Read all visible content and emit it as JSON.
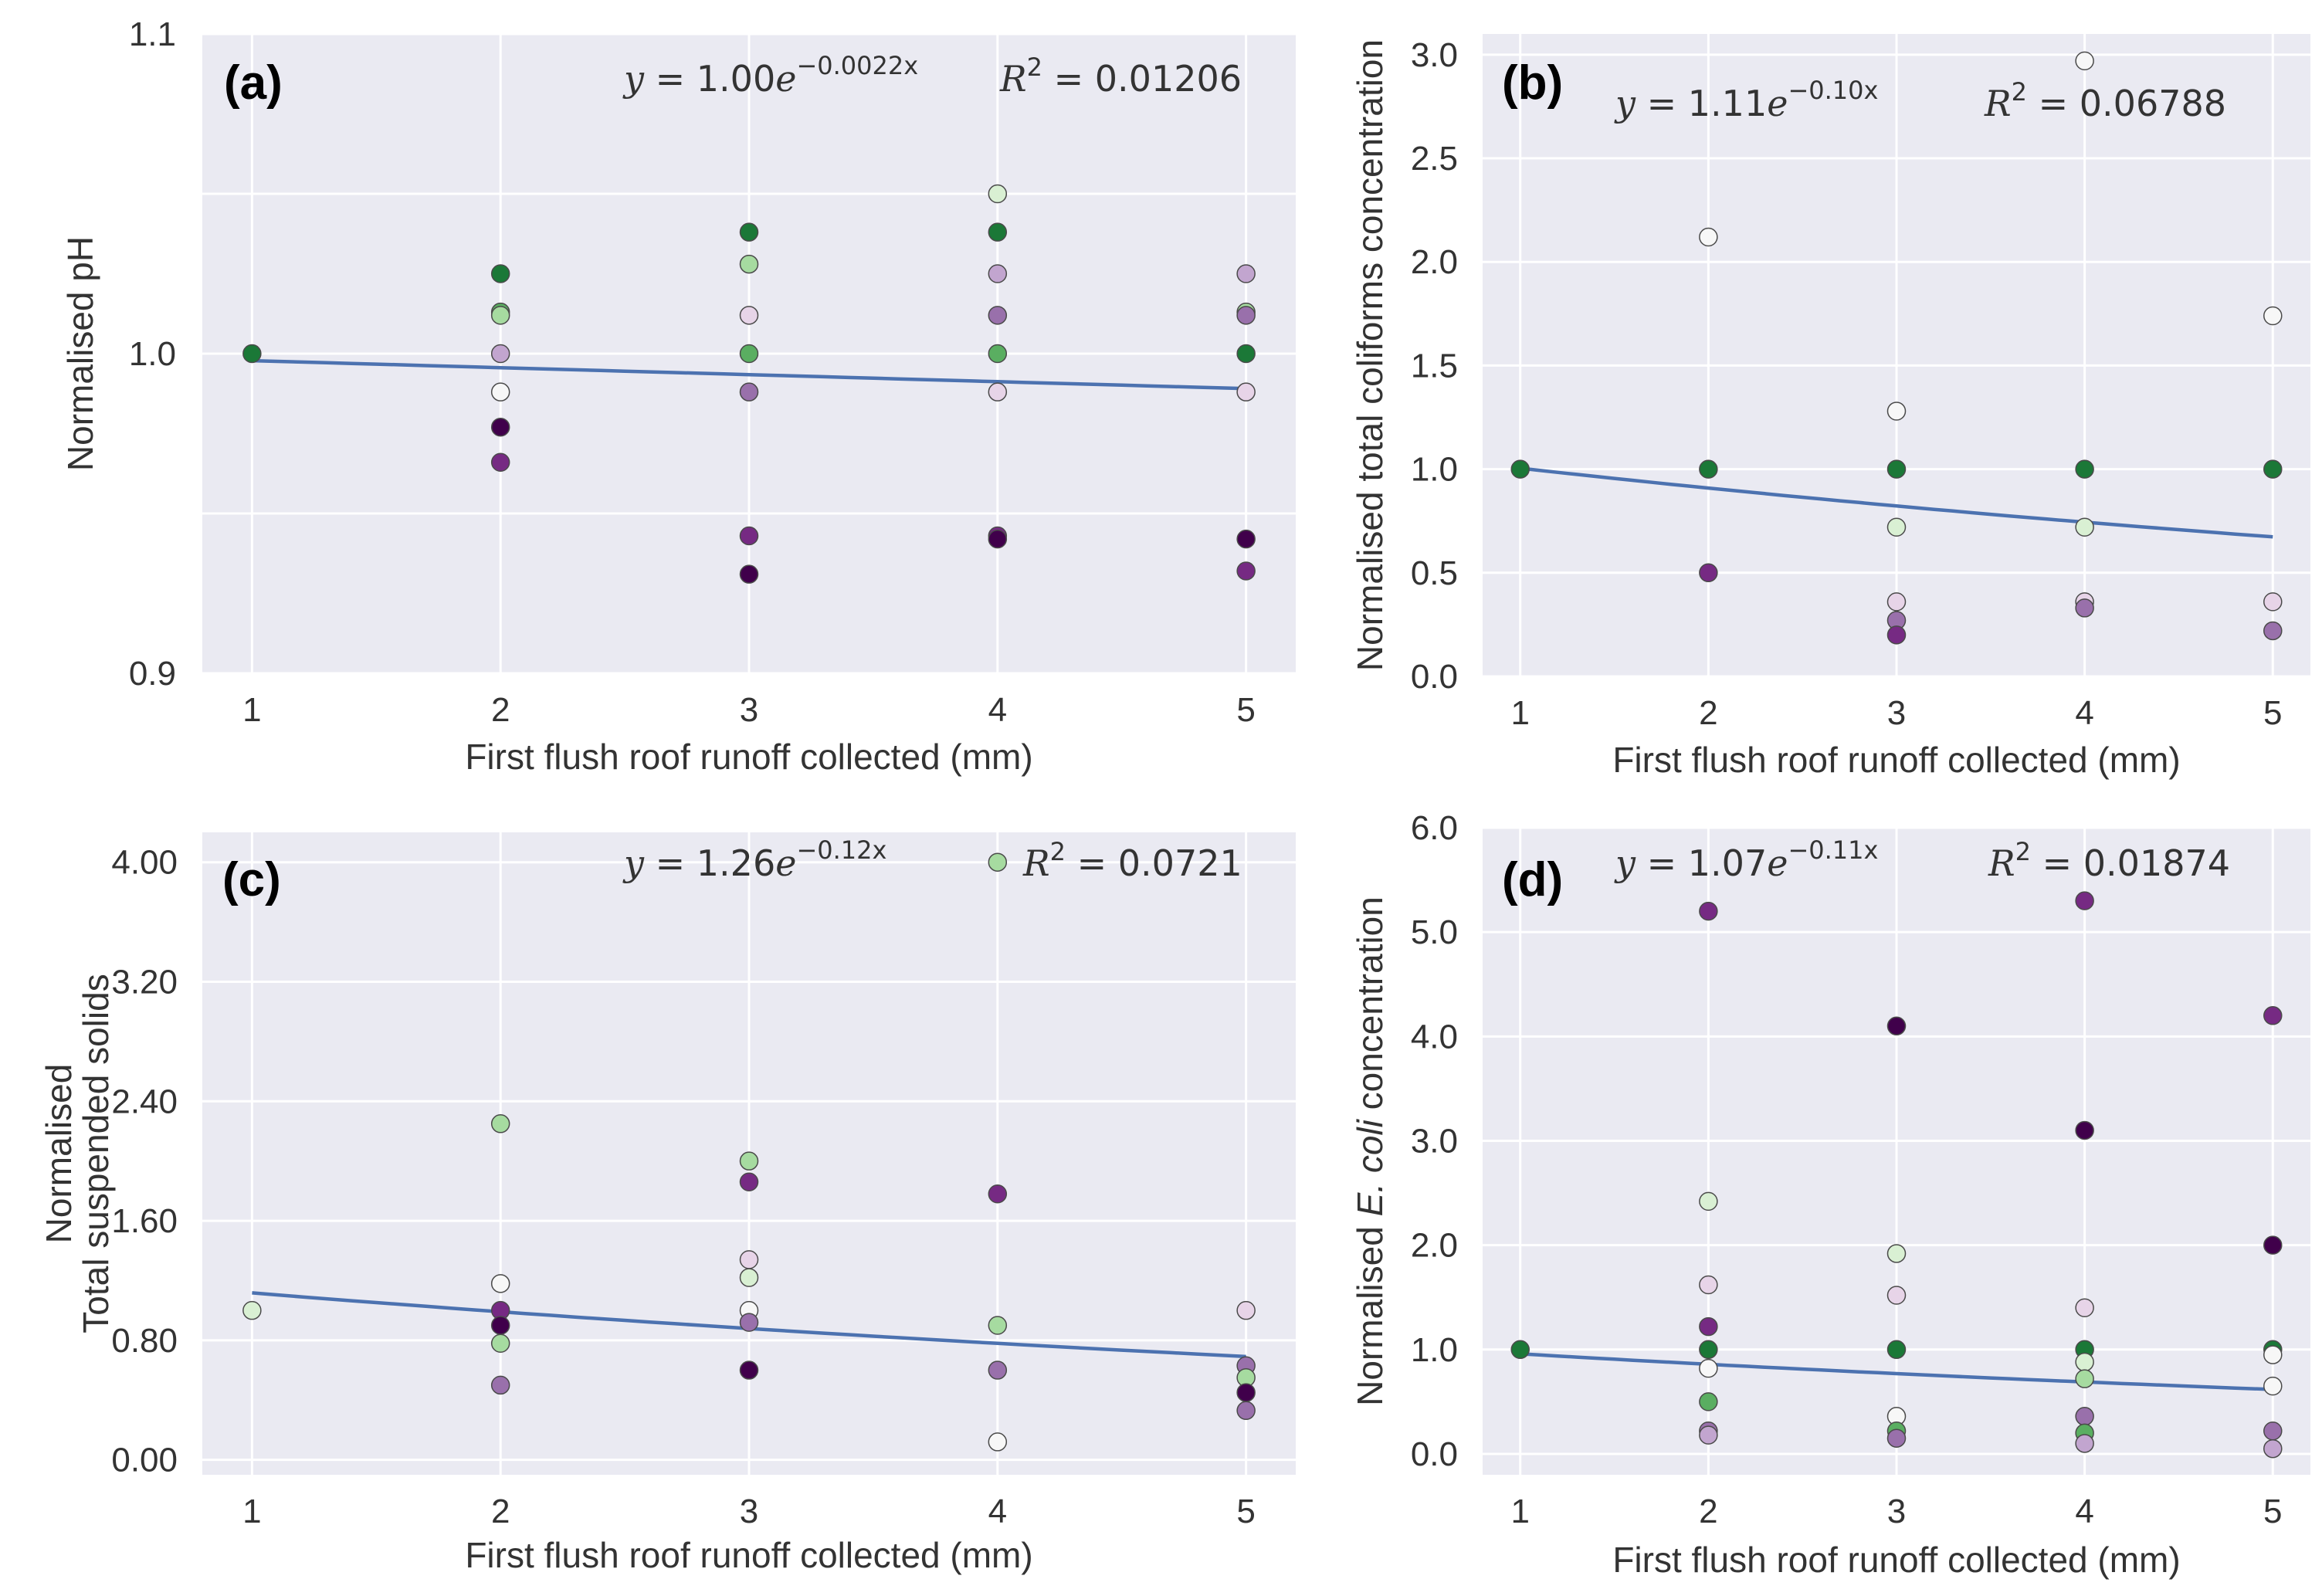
{
  "colors": {
    "background": "#eaeaf2",
    "grid": "#ffffff",
    "fit_line": "#4c72b0",
    "point_edge": "#4a4a4a",
    "palette": [
      "#40004b",
      "#762a83",
      "#9970ab",
      "#c2a5cf",
      "#e7d4e8",
      "#f7f7f7",
      "#d9f0d3",
      "#a6dba0",
      "#5aae61",
      "#1b7837"
    ]
  },
  "chart_data": [
    {
      "id": "a",
      "type": "scatter",
      "panel_label": "(a)",
      "xlabel": "First flush roof runoff collected (mm)",
      "ylabel": "Normalised pH",
      "xlim": [
        0.8,
        5.2
      ],
      "ylim": [
        0.9,
        1.1
      ],
      "xticks": [
        1,
        2,
        3,
        4,
        5
      ],
      "yticks": [
        0.9,
        1.0,
        1.1
      ],
      "ytick_labels": [
        "0.9",
        "1.0",
        "1.1"
      ],
      "grid_y": [
        0.95,
        1.05
      ],
      "equation": {
        "lhs": "y",
        "mid": " = 1.00",
        "base": "e",
        "exponent": "−0.0022x"
      },
      "r2": {
        "prefix": "R",
        "power": "2",
        "value": " = 0.01206"
      },
      "fit": {
        "a": 1.0,
        "b": -0.0022,
        "x_range": [
          1,
          5
        ]
      },
      "points": [
        {
          "x": 1,
          "y": 1.0,
          "c": 9
        },
        {
          "x": 2,
          "y": 1.025,
          "c": 9
        },
        {
          "x": 2,
          "y": 1.013,
          "c": 8
        },
        {
          "x": 2,
          "y": 1.012,
          "c": 7
        },
        {
          "x": 2,
          "y": 1.0,
          "c": 3
        },
        {
          "x": 2,
          "y": 0.988,
          "c": 5
        },
        {
          "x": 2,
          "y": 0.977,
          "c": 0
        },
        {
          "x": 2,
          "y": 0.966,
          "c": 1
        },
        {
          "x": 3,
          "y": 1.038,
          "c": 9
        },
        {
          "x": 3,
          "y": 1.028,
          "c": 7
        },
        {
          "x": 3,
          "y": 1.012,
          "c": 4
        },
        {
          "x": 3,
          "y": 1.0,
          "c": 8
        },
        {
          "x": 3,
          "y": 0.988,
          "c": 2
        },
        {
          "x": 3,
          "y": 0.943,
          "c": 1
        },
        {
          "x": 3,
          "y": 0.931,
          "c": 0
        },
        {
          "x": 4,
          "y": 1.05,
          "c": 6
        },
        {
          "x": 4,
          "y": 1.038,
          "c": 9
        },
        {
          "x": 4,
          "y": 1.025,
          "c": 3
        },
        {
          "x": 4,
          "y": 1.012,
          "c": 2
        },
        {
          "x": 4,
          "y": 1.0,
          "c": 8
        },
        {
          "x": 4,
          "y": 0.988,
          "c": 4
        },
        {
          "x": 4,
          "y": 0.943,
          "c": 1
        },
        {
          "x": 4,
          "y": 0.942,
          "c": 0
        },
        {
          "x": 5,
          "y": 1.025,
          "c": 3
        },
        {
          "x": 5,
          "y": 1.013,
          "c": 7
        },
        {
          "x": 5,
          "y": 1.012,
          "c": 2
        },
        {
          "x": 5,
          "y": 1.0,
          "c": 9
        },
        {
          "x": 5,
          "y": 0.988,
          "c": 4
        },
        {
          "x": 5,
          "y": 0.942,
          "c": 0
        },
        {
          "x": 5,
          "y": 0.932,
          "c": 1
        }
      ]
    },
    {
      "id": "b",
      "type": "scatter",
      "panel_label": "(b)",
      "xlabel": "First flush roof runoff collected (mm)",
      "ylabel": "Normalised total coliforms concentration",
      "xlim": [
        0.8,
        5.2
      ],
      "ylim": [
        0.0,
        3.1
      ],
      "xticks": [
        1,
        2,
        3,
        4,
        5
      ],
      "yticks": [
        0.0,
        0.5,
        1.0,
        1.5,
        2.0,
        2.5,
        3.0
      ],
      "ytick_labels": [
        "0.0",
        "0.5",
        "1.0",
        "1.5",
        "2.0",
        "2.5",
        "3.0"
      ],
      "grid_y": [],
      "equation": {
        "lhs": "y",
        "mid": " = 1.11",
        "base": "e",
        "exponent": "−0.10x"
      },
      "r2": {
        "prefix": "R",
        "power": "2",
        "value": " = 0.06788"
      },
      "fit": {
        "a": 1.11,
        "b": -0.1,
        "x_range": [
          1,
          5
        ]
      },
      "points": [
        {
          "x": 1,
          "y": 1.0,
          "c": 9
        },
        {
          "x": 2,
          "y": 2.12,
          "c": 5
        },
        {
          "x": 2,
          "y": 1.0,
          "c": 9
        },
        {
          "x": 2,
          "y": 0.5,
          "c": 1
        },
        {
          "x": 3,
          "y": 1.28,
          "c": 5
        },
        {
          "x": 3,
          "y": 1.0,
          "c": 9
        },
        {
          "x": 3,
          "y": 0.72,
          "c": 6
        },
        {
          "x": 3,
          "y": 0.36,
          "c": 4
        },
        {
          "x": 3,
          "y": 0.27,
          "c": 2
        },
        {
          "x": 3,
          "y": 0.2,
          "c": 1
        },
        {
          "x": 4,
          "y": 2.97,
          "c": 5
        },
        {
          "x": 4,
          "y": 1.0,
          "c": 9
        },
        {
          "x": 4,
          "y": 0.72,
          "c": 6
        },
        {
          "x": 4,
          "y": 0.36,
          "c": 4
        },
        {
          "x": 4,
          "y": 0.33,
          "c": 2
        },
        {
          "x": 5,
          "y": 1.74,
          "c": 5
        },
        {
          "x": 5,
          "y": 1.0,
          "c": 9
        },
        {
          "x": 5,
          "y": 0.36,
          "c": 4
        },
        {
          "x": 5,
          "y": 0.22,
          "c": 2
        }
      ]
    },
    {
      "id": "c",
      "type": "scatter",
      "panel_label": "(c)",
      "xlabel": "First flush roof runoff collected (mm)",
      "ylabel": "Normalised",
      "ylabel2": "Total suspended solids",
      "xlim": [
        0.8,
        5.2
      ],
      "ylim": [
        -0.1,
        4.2
      ],
      "xticks": [
        1,
        2,
        3,
        4,
        5
      ],
      "yticks": [
        0.0,
        0.8,
        1.6,
        2.4,
        3.2,
        4.0
      ],
      "ytick_labels": [
        "0.00",
        "0.80",
        "1.60",
        "2.40",
        "3.20",
        "4.00"
      ],
      "grid_y": [],
      "equation": {
        "lhs": "y",
        "mid": " = 1.26",
        "base": "e",
        "exponent": "−0.12x"
      },
      "r2": {
        "prefix": "R",
        "power": "2",
        "value": " = 0.0721"
      },
      "fit": {
        "a": 1.26,
        "b": -0.12,
        "x_range": [
          1,
          5
        ]
      },
      "points": [
        {
          "x": 1,
          "y": 1.0,
          "c": 6
        },
        {
          "x": 2,
          "y": 2.25,
          "c": 7
        },
        {
          "x": 2,
          "y": 1.18,
          "c": 5
        },
        {
          "x": 2,
          "y": 1.0,
          "c": 1
        },
        {
          "x": 2,
          "y": 0.9,
          "c": 0
        },
        {
          "x": 2,
          "y": 0.78,
          "c": 7
        },
        {
          "x": 2,
          "y": 0.5,
          "c": 2
        },
        {
          "x": 3,
          "y": 2.0,
          "c": 7
        },
        {
          "x": 3,
          "y": 1.86,
          "c": 1
        },
        {
          "x": 3,
          "y": 1.34,
          "c": 4
        },
        {
          "x": 3,
          "y": 1.22,
          "c": 6
        },
        {
          "x": 3,
          "y": 1.0,
          "c": 5
        },
        {
          "x": 3,
          "y": 0.92,
          "c": 2
        },
        {
          "x": 3,
          "y": 0.6,
          "c": 0
        },
        {
          "x": 4,
          "y": 4.0,
          "c": 7
        },
        {
          "x": 4,
          "y": 1.78,
          "c": 1
        },
        {
          "x": 4,
          "y": 0.9,
          "c": 7
        },
        {
          "x": 4,
          "y": 0.6,
          "c": 2
        },
        {
          "x": 4,
          "y": 0.12,
          "c": 5
        },
        {
          "x": 5,
          "y": 1.0,
          "c": 4
        },
        {
          "x": 5,
          "y": 0.63,
          "c": 2
        },
        {
          "x": 5,
          "y": 0.55,
          "c": 7
        },
        {
          "x": 5,
          "y": 0.45,
          "c": 0
        },
        {
          "x": 5,
          "y": 0.33,
          "c": 2
        }
      ]
    },
    {
      "id": "d",
      "type": "scatter",
      "panel_label": "(d)",
      "xlabel": "First flush roof runoff collected (mm)",
      "ylabel_pre": "Normalised ",
      "ylabel_it": "E. coli",
      "ylabel_post": " concentration",
      "xlim": [
        0.8,
        5.2
      ],
      "ylim": [
        -0.2,
        6.0
      ],
      "xticks": [
        1,
        2,
        3,
        4,
        5
      ],
      "yticks": [
        0.0,
        1.0,
        2.0,
        3.0,
        4.0,
        5.0,
        6.0
      ],
      "ytick_labels": [
        "0.0",
        "1.0",
        "2.0",
        "3.0",
        "4.0",
        "5.0",
        "6.0"
      ],
      "grid_y": [],
      "equation": {
        "lhs": "y",
        "mid": " = 1.07",
        "base": "e",
        "exponent": "−0.11x"
      },
      "r2": {
        "prefix": "R",
        "power": "2",
        "value": " = 0.01874"
      },
      "fit": {
        "a": 1.07,
        "b": -0.11,
        "x_range": [
          1,
          5
        ]
      },
      "points": [
        {
          "x": 1,
          "y": 1.0,
          "c": 9
        },
        {
          "x": 2,
          "y": 5.2,
          "c": 1
        },
        {
          "x": 2,
          "y": 2.42,
          "c": 6
        },
        {
          "x": 2,
          "y": 1.62,
          "c": 4
        },
        {
          "x": 2,
          "y": 1.22,
          "c": 1
        },
        {
          "x": 2,
          "y": 1.0,
          "c": 9
        },
        {
          "x": 2,
          "y": 0.82,
          "c": 5
        },
        {
          "x": 2,
          "y": 0.5,
          "c": 8
        },
        {
          "x": 2,
          "y": 0.22,
          "c": 2
        },
        {
          "x": 2,
          "y": 0.18,
          "c": 3
        },
        {
          "x": 3,
          "y": 4.1,
          "c": 0
        },
        {
          "x": 3,
          "y": 1.92,
          "c": 6
        },
        {
          "x": 3,
          "y": 1.52,
          "c": 4
        },
        {
          "x": 3,
          "y": 1.0,
          "c": 9
        },
        {
          "x": 3,
          "y": 0.36,
          "c": 5
        },
        {
          "x": 3,
          "y": 0.22,
          "c": 8
        },
        {
          "x": 3,
          "y": 0.15,
          "c": 2
        },
        {
          "x": 4,
          "y": 5.3,
          "c": 1
        },
        {
          "x": 4,
          "y": 3.1,
          "c": 0
        },
        {
          "x": 4,
          "y": 1.4,
          "c": 4
        },
        {
          "x": 4,
          "y": 1.0,
          "c": 9
        },
        {
          "x": 4,
          "y": 0.88,
          "c": 6
        },
        {
          "x": 4,
          "y": 0.72,
          "c": 7
        },
        {
          "x": 4,
          "y": 0.36,
          "c": 2
        },
        {
          "x": 4,
          "y": 0.2,
          "c": 8
        },
        {
          "x": 4,
          "y": 0.1,
          "c": 3
        },
        {
          "x": 5,
          "y": 4.2,
          "c": 1
        },
        {
          "x": 5,
          "y": 2.0,
          "c": 0
        },
        {
          "x": 5,
          "y": 1.0,
          "c": 9
        },
        {
          "x": 5,
          "y": 0.95,
          "c": 5
        },
        {
          "x": 5,
          "y": 0.65,
          "c": 5
        },
        {
          "x": 5,
          "y": 0.22,
          "c": 2
        },
        {
          "x": 5,
          "y": 0.05,
          "c": 3
        }
      ]
    }
  ]
}
